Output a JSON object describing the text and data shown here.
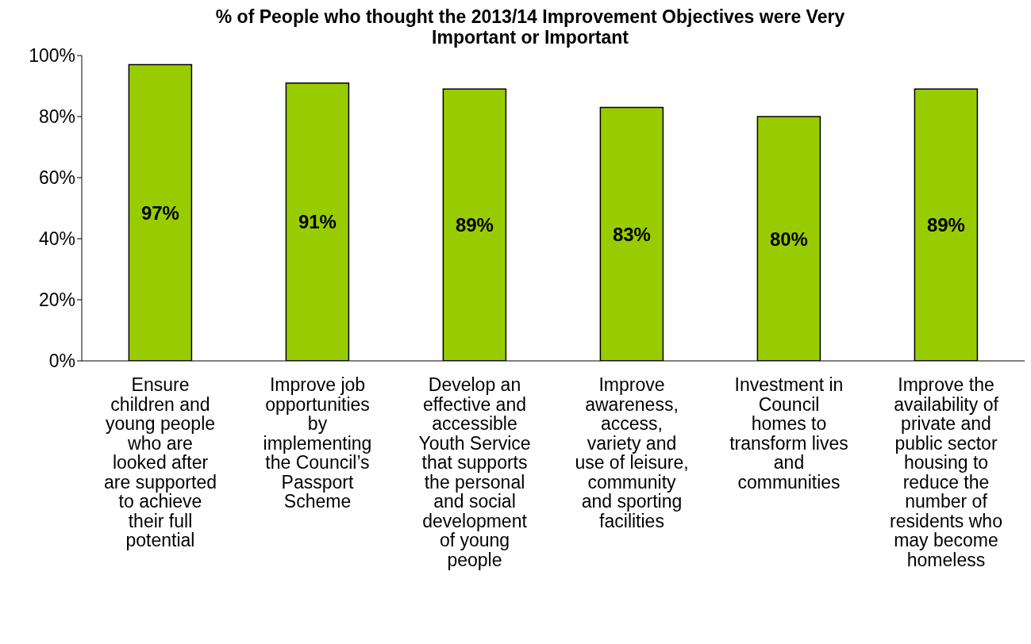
{
  "chart_data": {
    "type": "bar",
    "title": "% of People who thought the 2013/14 Improvement Objectives were Very Important or Important",
    "categories": [
      "Ensure children and young people who are looked after are supported to achieve their full potential",
      "Improve job opportunities by implementing the Council’s Passport Scheme",
      "Develop an effective and accessible Youth Service that supports the personal and social development of young people",
      "Improve awareness, access, variety and use of leisure, community and sporting facilities",
      "Investment in Council homes to transform lives and communities",
      "Improve the availability of private and public sector housing to reduce the number of residents who may become homeless"
    ],
    "values": [
      97,
      91,
      89,
      83,
      80,
      89
    ],
    "value_labels": [
      "97%",
      "91%",
      "89%",
      "83%",
      "80%",
      "89%"
    ],
    "color": "#99cc00",
    "ylim": [
      0,
      100
    ],
    "yticks": [
      {
        "value": 0,
        "label": "0%"
      },
      {
        "value": 20,
        "label": "20%"
      },
      {
        "value": 40,
        "label": "40%"
      },
      {
        "value": 60,
        "label": "60%"
      },
      {
        "value": 80,
        "label": "80%"
      },
      {
        "value": 100,
        "label": "100%"
      }
    ],
    "grid": false,
    "legend": false
  }
}
